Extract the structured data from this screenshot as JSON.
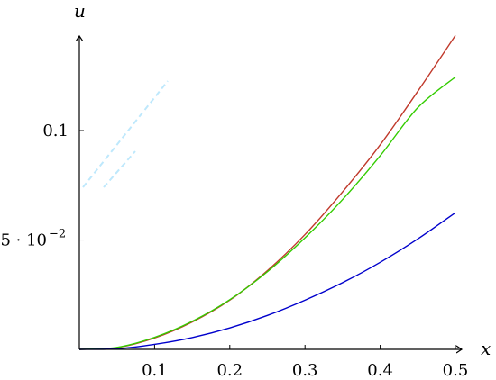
{
  "chart_data": {
    "type": "line",
    "xlabel": "x",
    "ylabel": "u",
    "xlim": [
      0,
      0.5
    ],
    "ylim": [
      0,
      0.142
    ],
    "x_ticks": [
      0.1,
      0.2,
      0.3,
      0.4,
      0.5
    ],
    "x_tick_labels": [
      "0.1",
      "0.2",
      "0.3",
      "0.4",
      "0.5"
    ],
    "y_ticks": [
      0.05,
      0.1
    ],
    "y_tick_labels": [
      "5 · 10",
      "0.1"
    ],
    "y_tick_exponent": "−2",
    "grid": false,
    "legend": "none",
    "x": [
      0,
      0.05,
      0.1,
      0.15,
      0.2,
      0.25,
      0.3,
      0.35,
      0.4,
      0.45,
      0.5
    ],
    "series": [
      {
        "color": "#c0392b",
        "values": [
          0,
          0.0008,
          0.0052,
          0.0125,
          0.0225,
          0.036,
          0.0525,
          0.072,
          0.0935,
          0.118,
          0.1435
        ]
      },
      {
        "color": "#33cc00",
        "values": [
          0,
          0.0009,
          0.0055,
          0.0128,
          0.0227,
          0.0355,
          0.051,
          0.0685,
          0.0885,
          0.1105,
          0.1245
        ]
      },
      {
        "color": "#0000cc",
        "values": [
          0,
          0.0003,
          0.0023,
          0.0054,
          0.0098,
          0.0155,
          0.0225,
          0.0305,
          0.0398,
          0.0505,
          0.0625
        ]
      }
    ]
  }
}
